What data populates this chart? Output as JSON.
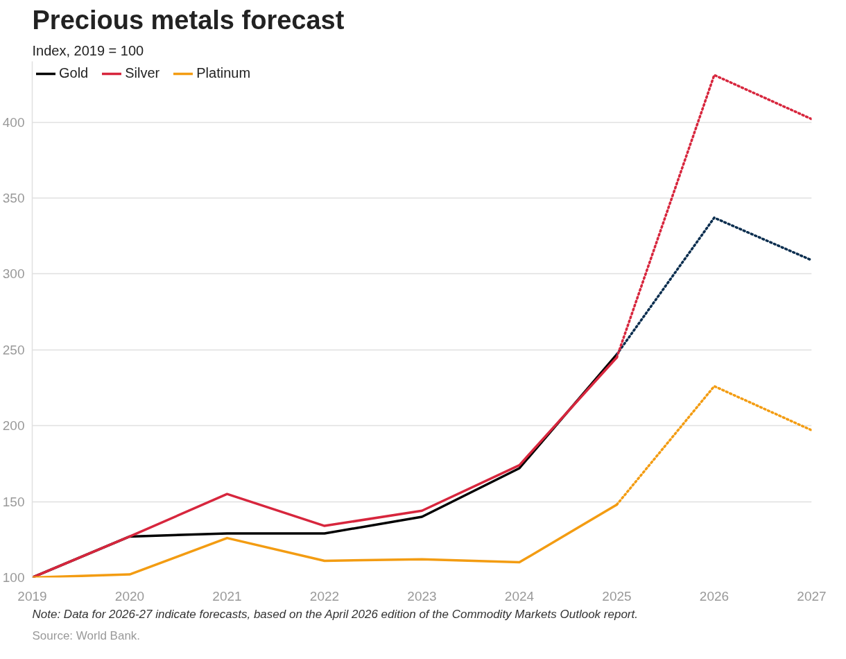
{
  "chart_data": {
    "type": "line",
    "title": "Precious metals forecast",
    "subtitle": "Index, 2019 = 100",
    "x": [
      2019,
      2020,
      2021,
      2022,
      2023,
      2024,
      2025
    ],
    "series": [
      {
        "name": "Gold",
        "color": "#000000",
        "values": [
          100,
          127,
          129,
          129,
          140,
          172,
          247
        ],
        "line_style": "solid"
      },
      {
        "name": "Silver",
        "color": "#d7263d",
        "values": [
          100,
          127,
          155,
          134,
          144,
          174,
          245
        ],
        "line_style": "solid"
      },
      {
        "name": "Platinum",
        "color": "#f39c12",
        "values": [
          100,
          102,
          126,
          111,
          112,
          110,
          148
        ],
        "line_style": "solid"
      },
      {
        "color": "#0b2e4f",
        "x": [
          2025,
          2026,
          2027
        ],
        "values": [
          247,
          337,
          309
        ],
        "line_style": "dotted"
      },
      {
        "color": "#d7263d",
        "x": [
          2025,
          2026,
          2027
        ],
        "values": [
          245,
          431,
          402
        ],
        "line_style": "dotted"
      },
      {
        "color": "#f39c12",
        "x": [
          2025,
          2026,
          2027
        ],
        "values": [
          148,
          226,
          197
        ],
        "line_style": "dotted"
      }
    ],
    "xlim": [
      2019,
      2027
    ],
    "xticks": [
      2019,
      2020,
      2021,
      2022,
      2023,
      2024,
      2025,
      2026,
      2027
    ],
    "ylim": [
      100,
      440
    ],
    "yticks": [
      100,
      150,
      200,
      250,
      300,
      350,
      400
    ],
    "grid": "y",
    "legend": "top left",
    "marker": "none",
    "annotations": [
      "Note: Data for 2026-27 indicate forecasts, based on the April 2026 edition of the Commodity Markets Outlook report.",
      "Source: World Bank."
    ]
  }
}
